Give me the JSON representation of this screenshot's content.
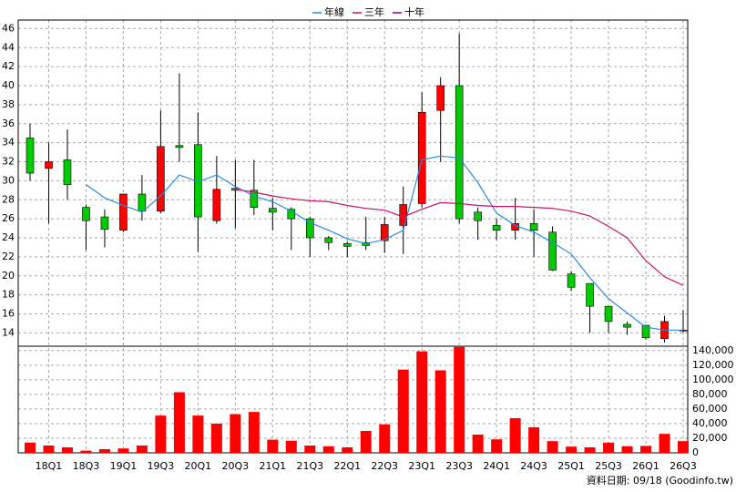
{
  "chart_data": [
    {
      "type": "candlestick",
      "legend": "top",
      "categories": [
        null,
        "18Q1",
        null,
        "18Q3",
        null,
        "19Q1",
        null,
        "19Q3",
        null,
        "20Q1",
        null,
        "20Q3",
        null,
        "21Q1",
        null,
        "21Q3",
        null,
        "22Q1",
        null,
        "22Q3",
        null,
        "23Q1",
        null,
        "23Q3",
        null,
        "24Q1",
        null,
        "24Q3",
        null,
        "25Q1",
        null,
        "25Q3",
        null,
        "26Q1",
        null,
        "26Q3"
      ],
      "open": [
        34.5,
        31.3,
        32.2,
        27.2,
        26.2,
        24.8,
        28.6,
        26.8,
        33.7,
        33.8,
        25.8,
        29.2,
        29,
        27.1,
        27,
        26,
        24,
        23.4,
        23.5,
        23.7,
        25.3,
        27.6,
        37.4,
        40,
        26.7,
        25.3,
        24.8,
        25.5,
        24.6,
        20.2,
        19.2,
        16.8,
        14.9,
        14.8,
        13.4,
        14.3
      ],
      "high": [
        36,
        34,
        35.4,
        27.5,
        27,
        28.6,
        30.6,
        37.4,
        41.3,
        37.2,
        32.6,
        32.2,
        32.2,
        28.2,
        27.2,
        26.2,
        24.2,
        23.6,
        26.2,
        26.2,
        29.4,
        39.3,
        40.9,
        45.5,
        27.2,
        26,
        28.2,
        27,
        25.2,
        20.5,
        19.2,
        16.8,
        15.2,
        14.8,
        15.8,
        16.4
      ],
      "low": [
        30,
        25.5,
        28,
        22.7,
        23,
        24.6,
        25.8,
        26.6,
        32,
        22.5,
        25.5,
        25,
        26.4,
        24.8,
        22.7,
        22,
        22.7,
        22,
        22.7,
        22.4,
        22.3,
        27.2,
        32,
        25.5,
        23.8,
        23.8,
        23.8,
        22,
        20.5,
        18.4,
        14,
        14,
        13.8,
        13.3,
        13,
        14
      ],
      "close": [
        30.8,
        32,
        29.6,
        25.8,
        24.9,
        28.6,
        26.8,
        33.6,
        33.5,
        26.2,
        29.1,
        29,
        27.2,
        26.7,
        26,
        24,
        23.5,
        23.1,
        23.2,
        25.4,
        27.5,
        37.2,
        40,
        26,
        25.8,
        24.8,
        25.5,
        24.8,
        20.6,
        18.8,
        16.8,
        15.2,
        14.6,
        13.5,
        15.2,
        14.3
      ],
      "up_color": "#ff0000",
      "down_color": "#00cc00",
      "series": [
        {
          "name": "年線",
          "color": "#2a8be0",
          "values": [
            null,
            null,
            null,
            29.6,
            28.2,
            27.4,
            26.7,
            28.4,
            30.6,
            29.9,
            30.6,
            29.4,
            28.4,
            27.8,
            26.8,
            25.6,
            24.8,
            23.9,
            23.4,
            23.8,
            24.8,
            32.2,
            32.6,
            32.4,
            29.8,
            26.6,
            25.3,
            24.6,
            23.5,
            22.3,
            19.8,
            17.6,
            16.1,
            14.6,
            14.3,
            14.3
          ]
        },
        {
          "name": "三年",
          "color": "#cc1166",
          "values": [
            null,
            null,
            null,
            null,
            null,
            null,
            null,
            null,
            null,
            null,
            null,
            29.1,
            28.8,
            28.4,
            28.1,
            27.9,
            27.8,
            27.4,
            27.1,
            26.9,
            26.2,
            27,
            27.7,
            27.6,
            27.4,
            27.3,
            27.3,
            27.2,
            27.1,
            26.8,
            26.3,
            25.2,
            24,
            21.6,
            19.9,
            19
          ]
        },
        {
          "name": "十年",
          "color": "#880088",
          "values": [
            null,
            null,
            null,
            null,
            null,
            null,
            null,
            null,
            null,
            null,
            null,
            null,
            null,
            null,
            null,
            null,
            null,
            null,
            null,
            null,
            null,
            null,
            null,
            null,
            null,
            null,
            null,
            null,
            null,
            null,
            null,
            null,
            null,
            null,
            null,
            null
          ]
        }
      ],
      "ylim": [
        12.6,
        46.9
      ],
      "yticks": [
        14,
        16,
        18,
        20,
        22,
        24,
        26,
        28,
        30,
        32,
        34,
        36,
        38,
        40,
        42,
        44,
        46
      ],
      "grid": true
    },
    {
      "type": "bar",
      "color": "#ff0000",
      "values": [
        14000,
        10000,
        7500,
        3000,
        5000,
        6000,
        10000,
        51000,
        83000,
        51000,
        40000,
        53000,
        56000,
        18000,
        16500,
        10000,
        9000,
        7500,
        30000,
        39000,
        114000,
        139000,
        113000,
        145000,
        25000,
        18500,
        47500,
        35000,
        16000,
        8500,
        7500,
        14000,
        9000,
        9500,
        26000,
        16000
      ],
      "ylim": [
        0,
        146000
      ],
      "yticks": [
        0,
        {
          "value": 20000,
          "label": "20,000"
        },
        {
          "value": 40000,
          "label": "40,000"
        },
        {
          "value": 60000,
          "label": "60,000"
        },
        {
          "value": 80000,
          "label": "80,000"
        },
        {
          "value": 100000,
          "label": "100,000"
        },
        {
          "value": 120000,
          "label": "120,000"
        },
        {
          "value": 140000,
          "label": "140,000"
        }
      ],
      "grid": true
    }
  ],
  "footer": "資料日期: 09/18  (Goodinfo.tw)"
}
